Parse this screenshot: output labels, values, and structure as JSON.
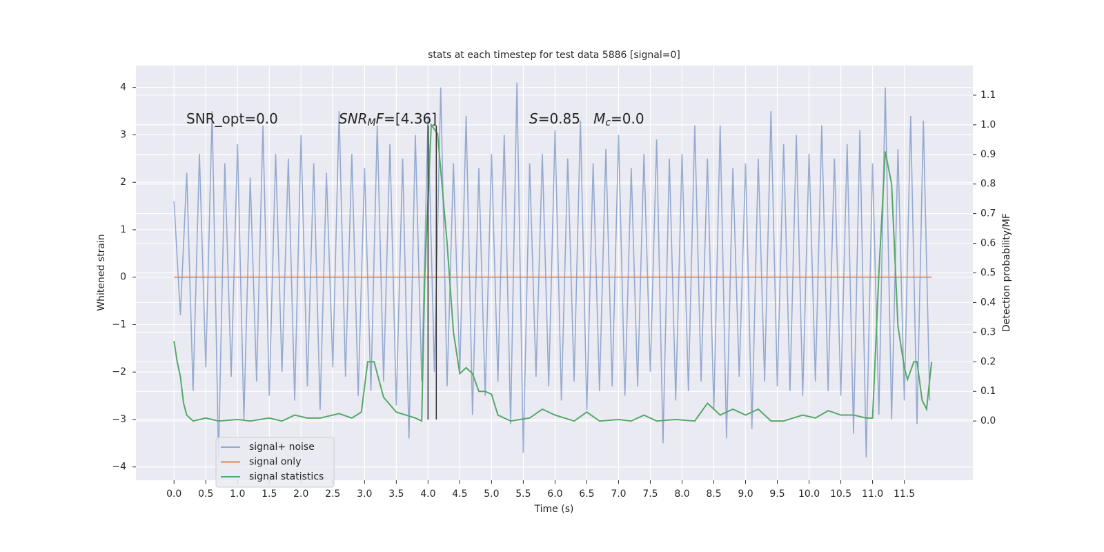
{
  "chart_data": {
    "type": "line",
    "title": "stats at each timestep for test data 5886 [signal=0]",
    "xlabel": "Time (s)",
    "ylabel": "Whitened strain",
    "y2label": "Detection probability/MF",
    "xlim": [
      -0.6,
      12.58
    ],
    "ylim": [
      -4.28,
      4.46
    ],
    "y2lim": [
      -0.2,
      1.2
    ],
    "xticks": [
      {
        "value": 0,
        "label": "0.0"
      },
      {
        "value": 0.5,
        "label": "0.5"
      },
      {
        "value": 1,
        "label": "1.0"
      },
      {
        "value": 1.5,
        "label": "1.5"
      },
      {
        "value": 2,
        "label": "2.0"
      },
      {
        "value": 2.5,
        "label": "2.5"
      },
      {
        "value": 3,
        "label": "3.0"
      },
      {
        "value": 3.5,
        "label": "3.5"
      },
      {
        "value": 4,
        "label": "4.0"
      },
      {
        "value": 4.5,
        "label": "4.5"
      },
      {
        "value": 5,
        "label": "5.0"
      },
      {
        "value": 5.5,
        "label": "5.5"
      },
      {
        "value": 6,
        "label": "6.0"
      },
      {
        "value": 6.5,
        "label": "6.5"
      },
      {
        "value": 7,
        "label": "7.0"
      },
      {
        "value": 7.5,
        "label": "7.5"
      },
      {
        "value": 8,
        "label": "8.0"
      },
      {
        "value": 8.5,
        "label": "8.5"
      },
      {
        "value": 9,
        "label": "9.0"
      },
      {
        "value": 9.5,
        "label": "9.5"
      },
      {
        "value": 10,
        "label": "10.0"
      },
      {
        "value": 10.5,
        "label": "10.5"
      },
      {
        "value": 11,
        "label": "11.0"
      },
      {
        "value": 11.5,
        "label": "11.5"
      }
    ],
    "yticks": [
      {
        "value": -4,
        "label": "−4"
      },
      {
        "value": -3,
        "label": "−3"
      },
      {
        "value": -2,
        "label": "−2"
      },
      {
        "value": -1,
        "label": "−1"
      },
      0,
      1,
      2,
      3,
      4
    ],
    "y2ticks": [
      {
        "value": 0,
        "label": "0.0"
      },
      0.1,
      0.2,
      0.3,
      0.4,
      0.5,
      0.6,
      0.7,
      0.8,
      0.9,
      {
        "value": 1,
        "label": "1.0"
      },
      1.1
    ],
    "grid": true,
    "legend": "lower left",
    "series": [
      {
        "name": "signal+ noise",
        "color": "#4c72b0",
        "alpha": 0.55,
        "axis": "y",
        "x": [
          0,
          0.1,
          0.2,
          0.3,
          0.4,
          0.5,
          0.6,
          0.7,
          0.8,
          0.9,
          1,
          1.1,
          1.2,
          1.3,
          1.4,
          1.5,
          1.6,
          1.7,
          1.8,
          1.9,
          2,
          2.1,
          2.2,
          2.3,
          2.4,
          2.5,
          2.6,
          2.7,
          2.8,
          2.9,
          3,
          3.1,
          3.2,
          3.3,
          3.4,
          3.5,
          3.6,
          3.7,
          3.8,
          3.9,
          4,
          4.1,
          4.2,
          4.3,
          4.4,
          4.5,
          4.6,
          4.7,
          4.8,
          4.9,
          5,
          5.1,
          5.2,
          5.3,
          5.4,
          5.5,
          5.6,
          5.7,
          5.8,
          5.9,
          6,
          6.1,
          6.2,
          6.3,
          6.4,
          6.5,
          6.6,
          6.7,
          6.8,
          6.9,
          7,
          7.1,
          7.2,
          7.3,
          7.4,
          7.5,
          7.6,
          7.7,
          7.8,
          7.9,
          8,
          8.1,
          8.2,
          8.3,
          8.4,
          8.5,
          8.6,
          8.7,
          8.8,
          8.9,
          9,
          9.1,
          9.2,
          9.3,
          9.4,
          9.5,
          9.6,
          9.7,
          9.8,
          9.9,
          10,
          10.1,
          10.2,
          10.3,
          10.4,
          10.5,
          10.6,
          10.7,
          10.8,
          10.9,
          11,
          11.1,
          11.2,
          11.3,
          11.4,
          11.5,
          11.6,
          11.7,
          11.8,
          11.9
        ],
        "values": [
          1.6,
          -0.8,
          2.2,
          -2.4,
          2.6,
          -1.9,
          3.5,
          -3.8,
          2.4,
          -2.1,
          2.8,
          -3.0,
          2.1,
          -2.2,
          3.2,
          -2.5,
          2.6,
          -2.0,
          2.5,
          -2.6,
          3.0,
          -2.3,
          2.4,
          -2.8,
          2.2,
          -1.9,
          3.5,
          -2.1,
          2.6,
          -2.5,
          2.3,
          -2.4,
          3.2,
          -2.2,
          2.8,
          -2.7,
          2.5,
          -3.4,
          3.0,
          -2.2,
          3.4,
          -2.0,
          4.0,
          -2.3,
          2.4,
          -2.0,
          3.4,
          -2.9,
          2.3,
          -2.5,
          2.6,
          -2.2,
          3.0,
          -3.1,
          4.1,
          -3.7,
          2.4,
          -2.1,
          2.6,
          -2.3,
          3.1,
          -2.6,
          2.5,
          -2.2,
          3.3,
          -2.8,
          2.4,
          -2.4,
          2.7,
          -2.3,
          3.0,
          -2.5,
          2.3,
          -2.3,
          2.6,
          -2.0,
          2.9,
          -3.5,
          2.5,
          -2.6,
          2.6,
          -2.4,
          3.2,
          -2.2,
          2.5,
          -2.8,
          3.2,
          -3.4,
          2.3,
          -2.1,
          2.4,
          -3.2,
          2.5,
          -2.2,
          3.5,
          -2.3,
          2.8,
          -2.4,
          3.0,
          -2.5,
          2.6,
          -2.2,
          3.2,
          -2.4,
          2.5,
          -2.5,
          2.8,
          -3.3,
          3.1,
          -3.8,
          2.4,
          -2.9,
          4.0,
          -3.0,
          2.7,
          -2.6,
          3.4,
          -3.1,
          3.3,
          -2.6
        ]
      },
      {
        "name": "signal only",
        "color": "#dd8452",
        "alpha": 1,
        "axis": "y",
        "x": [
          0,
          11.93
        ],
        "values": [
          0,
          0
        ]
      },
      {
        "name": "signal statistics",
        "color": "#55a868",
        "alpha": 1,
        "axis": "y2",
        "x": [
          0,
          0.05,
          0.1,
          0.15,
          0.2,
          0.3,
          0.5,
          0.7,
          1,
          1.2,
          1.5,
          1.7,
          1.9,
          2.1,
          2.3,
          2.6,
          2.8,
          2.95,
          3.05,
          3.15,
          3.3,
          3.5,
          3.8,
          3.9,
          3.95,
          4.05,
          4.15,
          4.3,
          4.4,
          4.5,
          4.6,
          4.7,
          4.8,
          4.9,
          5,
          5.1,
          5.3,
          5.6,
          5.8,
          6,
          6.3,
          6.5,
          6.7,
          7,
          7.2,
          7.4,
          7.6,
          7.9,
          8.2,
          8.4,
          8.6,
          8.8,
          9,
          9.2,
          9.4,
          9.6,
          9.9,
          10.1,
          10.3,
          10.5,
          10.7,
          10.9,
          11,
          11.1,
          11.2,
          11.3,
          11.4,
          11.5,
          11.55,
          11.65,
          11.7,
          11.78,
          11.85,
          11.93
        ],
        "values": [
          0.27,
          0.2,
          0.15,
          0.06,
          0.02,
          0,
          0.01,
          0,
          0.005,
          0,
          0.01,
          0,
          0.02,
          0.01,
          0.01,
          0.025,
          0.01,
          0.03,
          0.2,
          0.2,
          0.08,
          0.03,
          0.01,
          0,
          0.5,
          1,
          0.97,
          0.6,
          0.3,
          0.16,
          0.18,
          0.16,
          0.1,
          0.1,
          0.09,
          0.02,
          0,
          0.01,
          0.04,
          0.02,
          0,
          0.03,
          0,
          0.005,
          0,
          0.02,
          0,
          0.005,
          0,
          0.06,
          0.02,
          0.04,
          0.02,
          0.04,
          0,
          0,
          0.02,
          0.01,
          0.035,
          0.02,
          0.02,
          0.01,
          0.01,
          0.5,
          0.91,
          0.8,
          0.32,
          0.18,
          0.14,
          0.2,
          0.2,
          0.07,
          0.04,
          0.2
        ]
      }
    ],
    "vlines": {
      "x": [
        4.0,
        4.13
      ],
      "ymin": -3,
      "ymax": 3.2,
      "color": "#333333"
    },
    "annotations": [
      {
        "parts": [
          {
            "text": "SNR_opt=0.0"
          }
        ]
      },
      {
        "parts": [
          {
            "text": "SNR",
            "italic": true
          },
          {
            "text": "M",
            "italic": true,
            "sub": true
          },
          {
            "text": "F",
            "italic": true
          },
          {
            "text": "=[4.36]"
          }
        ]
      },
      {
        "parts": [
          {
            "text": "S",
            "italic": true
          },
          {
            "text": "=0.85   "
          },
          {
            "text": "M",
            "italic": true
          },
          {
            "text": "c",
            "italic": true,
            "sub": true
          },
          {
            "text": "=0.0"
          }
        ]
      }
    ]
  }
}
